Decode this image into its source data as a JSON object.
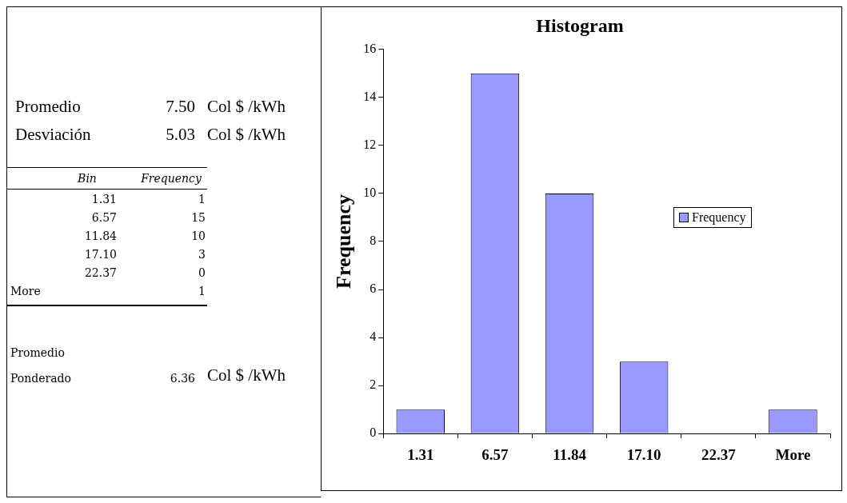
{
  "chart_data": {
    "type": "bar",
    "title": "Histogram",
    "ylabel": "Frequency",
    "categories": [
      "1.31",
      "6.57",
      "11.84",
      "17.10",
      "22.37",
      "More"
    ],
    "series": [
      {
        "name": "Frequency",
        "color": "#9999ff",
        "values": [
          1,
          15,
          10,
          3,
          0,
          1
        ]
      }
    ],
    "ylim": [
      0,
      16
    ],
    "yticks": [
      0,
      2,
      4,
      6,
      8,
      10,
      12,
      14,
      16
    ],
    "grid": false,
    "legend": "right",
    "annotations": [
      "Promedio",
      "7.50",
      "Col $ /kWh",
      "Desviación",
      "5.03",
      "Col $ /kWh",
      "Bin",
      "Frequency",
      "1.31",
      "1",
      "6.57",
      "15",
      "11.84",
      "10",
      "17.10",
      "3",
      "22.37",
      "0",
      "More",
      "1",
      "Promedio",
      "Ponderado",
      "6.36",
      "Col $ /kWh"
    ]
  }
}
